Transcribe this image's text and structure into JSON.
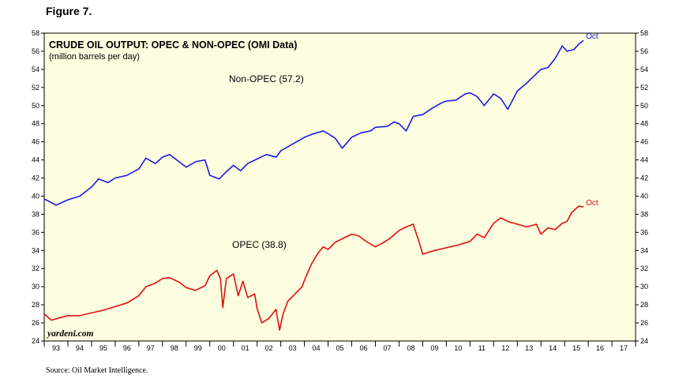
{
  "figure_label": "Figure 7.",
  "source": "Source: Oil Market Intelligence.",
  "colors": {
    "background": "#fdfde0",
    "non_opec": "#1a1ae6",
    "opec": "#e01010"
  },
  "chart_data": {
    "type": "line",
    "title": "CRUDE OIL OUTPUT: OPEC & NON-OPEC (OMI Data)",
    "subtitle": "(million barrels per day)",
    "watermark": "yardeni.com",
    "x_tick_labels": [
      "93",
      "94",
      "95",
      "96",
      "97",
      "98",
      "99",
      "00",
      "01",
      "02",
      "03",
      "04",
      "05",
      "06",
      "07",
      "08",
      "09",
      "10",
      "11",
      "12",
      "13",
      "14",
      "15",
      "16",
      "17"
    ],
    "xlim": [
      1993,
      2018
    ],
    "ylim": [
      24,
      58
    ],
    "y_ticks": [
      24,
      26,
      28,
      30,
      32,
      34,
      36,
      38,
      40,
      42,
      44,
      46,
      48,
      50,
      52,
      54,
      56,
      58
    ],
    "grid": false,
    "series": [
      {
        "name": "Non-OPEC (57.2)",
        "end_label": "Oct",
        "color": "#1a1ae6",
        "points": [
          [
            1993.0,
            39.7
          ],
          [
            1993.5,
            39.0
          ],
          [
            1994.0,
            39.6
          ],
          [
            1994.5,
            40.0
          ],
          [
            1995.0,
            41.0
          ],
          [
            1995.3,
            41.9
          ],
          [
            1995.7,
            41.5
          ],
          [
            1996.0,
            42.0
          ],
          [
            1996.5,
            42.3
          ],
          [
            1997.0,
            43.0
          ],
          [
            1997.3,
            44.2
          ],
          [
            1997.7,
            43.6
          ],
          [
            1998.0,
            44.3
          ],
          [
            1998.3,
            44.6
          ],
          [
            1998.7,
            43.8
          ],
          [
            1999.0,
            43.2
          ],
          [
            1999.4,
            43.8
          ],
          [
            1999.8,
            44.0
          ],
          [
            2000.0,
            42.3
          ],
          [
            2000.4,
            41.9
          ],
          [
            2000.7,
            42.7
          ],
          [
            2001.0,
            43.4
          ],
          [
            2001.3,
            42.8
          ],
          [
            2001.6,
            43.6
          ],
          [
            2002.0,
            44.1
          ],
          [
            2002.4,
            44.6
          ],
          [
            2002.8,
            44.3
          ],
          [
            2003.0,
            45.0
          ],
          [
            2003.4,
            45.6
          ],
          [
            2003.8,
            46.2
          ],
          [
            2004.0,
            46.5
          ],
          [
            2004.4,
            46.9
          ],
          [
            2004.8,
            47.2
          ],
          [
            2005.0,
            46.9
          ],
          [
            2005.3,
            46.4
          ],
          [
            2005.6,
            45.3
          ],
          [
            2006.0,
            46.5
          ],
          [
            2006.4,
            47.0
          ],
          [
            2006.8,
            47.2
          ],
          [
            2007.0,
            47.6
          ],
          [
            2007.5,
            47.7
          ],
          [
            2007.8,
            48.2
          ],
          [
            2008.0,
            48.0
          ],
          [
            2008.3,
            47.2
          ],
          [
            2008.6,
            48.8
          ],
          [
            2009.0,
            49.0
          ],
          [
            2009.4,
            49.7
          ],
          [
            2009.8,
            50.3
          ],
          [
            2010.0,
            50.5
          ],
          [
            2010.4,
            50.6
          ],
          [
            2010.8,
            51.3
          ],
          [
            2011.0,
            51.4
          ],
          [
            2011.3,
            51.0
          ],
          [
            2011.6,
            50.0
          ],
          [
            2012.0,
            51.3
          ],
          [
            2012.3,
            50.8
          ],
          [
            2012.6,
            49.6
          ],
          [
            2013.0,
            51.6
          ],
          [
            2013.4,
            52.5
          ],
          [
            2013.8,
            53.5
          ],
          [
            2014.0,
            54.0
          ],
          [
            2014.3,
            54.2
          ],
          [
            2014.6,
            55.2
          ],
          [
            2014.9,
            56.6
          ],
          [
            2015.1,
            56.0
          ],
          [
            2015.4,
            56.2
          ],
          [
            2015.6,
            56.8
          ],
          [
            2015.8,
            57.2
          ]
        ]
      },
      {
        "name": "OPEC (38.8)",
        "end_label": "Oct",
        "color": "#e01010",
        "points": [
          [
            1993.0,
            27.0
          ],
          [
            1993.3,
            26.3
          ],
          [
            1993.7,
            26.6
          ],
          [
            1994.0,
            26.8
          ],
          [
            1994.5,
            26.8
          ],
          [
            1995.0,
            27.1
          ],
          [
            1995.5,
            27.4
          ],
          [
            1996.0,
            27.8
          ],
          [
            1996.5,
            28.2
          ],
          [
            1997.0,
            29.0
          ],
          [
            1997.3,
            30.0
          ],
          [
            1997.7,
            30.4
          ],
          [
            1998.0,
            30.9
          ],
          [
            1998.3,
            31.0
          ],
          [
            1998.7,
            30.5
          ],
          [
            1999.0,
            29.9
          ],
          [
            1999.4,
            29.6
          ],
          [
            1999.8,
            30.1
          ],
          [
            2000.0,
            31.2
          ],
          [
            2000.3,
            31.8
          ],
          [
            2000.45,
            30.9
          ],
          [
            2000.55,
            27.7
          ],
          [
            2000.7,
            30.9
          ],
          [
            2001.0,
            31.4
          ],
          [
            2001.2,
            29.0
          ],
          [
            2001.4,
            30.6
          ],
          [
            2001.6,
            28.8
          ],
          [
            2001.9,
            29.2
          ],
          [
            2002.0,
            27.6
          ],
          [
            2002.2,
            26.0
          ],
          [
            2002.5,
            26.5
          ],
          [
            2002.8,
            27.5
          ],
          [
            2002.95,
            25.2
          ],
          [
            2003.1,
            27.0
          ],
          [
            2003.3,
            28.4
          ],
          [
            2003.6,
            29.2
          ],
          [
            2003.9,
            30.0
          ],
          [
            2004.0,
            30.7
          ],
          [
            2004.3,
            32.5
          ],
          [
            2004.6,
            33.8
          ],
          [
            2004.8,
            34.4
          ],
          [
            2005.0,
            34.1
          ],
          [
            2005.3,
            34.9
          ],
          [
            2005.6,
            35.3
          ],
          [
            2006.0,
            35.8
          ],
          [
            2006.3,
            35.6
          ],
          [
            2006.6,
            35.0
          ],
          [
            2007.0,
            34.4
          ],
          [
            2007.3,
            34.8
          ],
          [
            2007.6,
            35.3
          ],
          [
            2008.0,
            36.2
          ],
          [
            2008.3,
            36.6
          ],
          [
            2008.6,
            36.9
          ],
          [
            2008.85,
            34.9
          ],
          [
            2009.0,
            33.6
          ],
          [
            2009.5,
            34.0
          ],
          [
            2010.0,
            34.3
          ],
          [
            2010.5,
            34.6
          ],
          [
            2011.0,
            35.0
          ],
          [
            2011.3,
            35.8
          ],
          [
            2011.6,
            35.4
          ],
          [
            2012.0,
            37.0
          ],
          [
            2012.3,
            37.6
          ],
          [
            2012.6,
            37.2
          ],
          [
            2013.0,
            36.9
          ],
          [
            2013.4,
            36.6
          ],
          [
            2013.8,
            36.9
          ],
          [
            2014.0,
            35.8
          ],
          [
            2014.3,
            36.5
          ],
          [
            2014.6,
            36.3
          ],
          [
            2014.9,
            37.0
          ],
          [
            2015.1,
            37.2
          ],
          [
            2015.3,
            38.2
          ],
          [
            2015.6,
            38.9
          ],
          [
            2015.8,
            38.8
          ]
        ]
      }
    ]
  }
}
